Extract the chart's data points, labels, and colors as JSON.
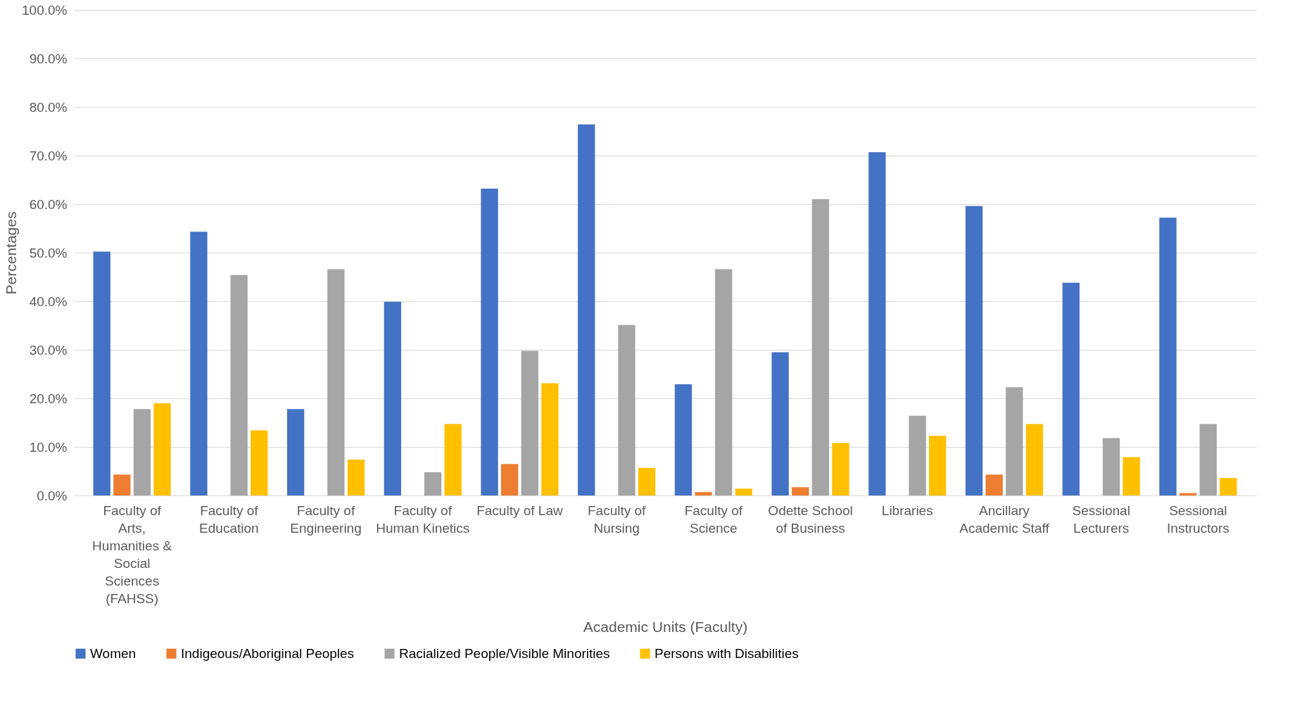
{
  "chart_data": {
    "type": "bar",
    "xlabel": "Academic Units (Faculty)",
    "ylabel": "Percentages",
    "categories": [
      "Faculty of Arts, Humanities & Social Sciences (FAHSS)",
      "Faculty of Education",
      "Faculty of Engineering",
      "Faculty of Human Kinetics",
      "Faculty of Law",
      "Faculty of Nursing",
      "Faculty of Science",
      "Odette School of Business",
      "Libraries",
      "Ancillary Academic Staff",
      "Sessional Lecturers",
      "Sessional Instructors"
    ],
    "series": [
      {
        "name": "Women",
        "color": "#4472c4",
        "values": [
          50.2,
          54.3,
          17.8,
          39.9,
          63.2,
          76.4,
          22.9,
          29.5,
          70.7,
          59.6,
          43.8,
          57.2
        ]
      },
      {
        "name": "Indigeous/Aboriginal Peoples",
        "color": "#ed7d31",
        "values": [
          4.3,
          0,
          0,
          0,
          6.5,
          0,
          0.7,
          1.7,
          0,
          4.3,
          0,
          0.5
        ]
      },
      {
        "name": "Racialized People/Visible Minorities",
        "color": "#a5a5a5",
        "values": [
          17.8,
          45.4,
          46.6,
          4.8,
          29.8,
          35.1,
          46.6,
          61.0,
          16.4,
          22.3,
          11.8,
          14.7
        ]
      },
      {
        "name": "Persons with Disabilities",
        "color": "#ffc000",
        "values": [
          19.0,
          13.4,
          7.4,
          14.7,
          23.1,
          5.7,
          1.4,
          10.8,
          12.3,
          14.7,
          7.9,
          3.6
        ]
      }
    ],
    "ylim": [
      0,
      100
    ],
    "yticks": [
      {
        "value": 0,
        "label": "0.0%"
      },
      {
        "value": 10,
        "label": "10.0%"
      },
      {
        "value": 20,
        "label": "20.0%"
      },
      {
        "value": 30,
        "label": "30.0%"
      },
      {
        "value": 40,
        "label": "40.0%"
      },
      {
        "value": 50,
        "label": "50.0%"
      },
      {
        "value": 60,
        "label": "60.0%"
      },
      {
        "value": 70,
        "label": "70.0%"
      },
      {
        "value": 80,
        "label": "80.0%"
      },
      {
        "value": 90,
        "label": "90.0%"
      },
      {
        "value": 100,
        "label": "100.0%"
      }
    ],
    "grid": "y",
    "legend": "bottom"
  }
}
